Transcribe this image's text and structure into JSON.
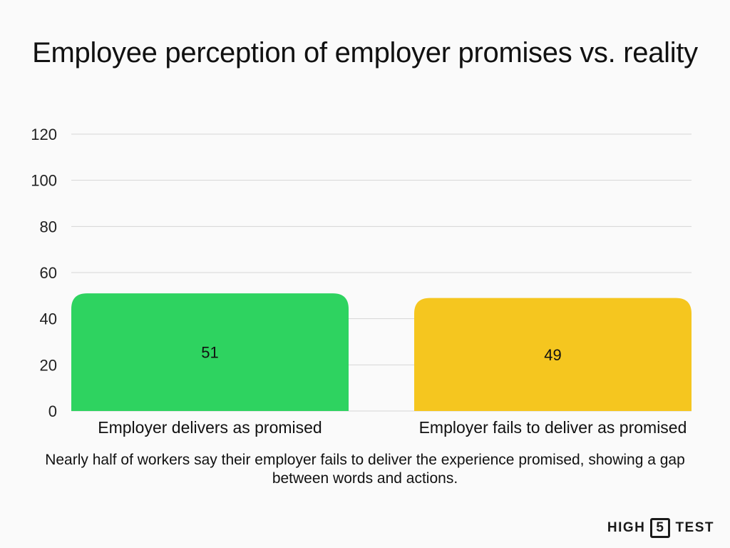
{
  "chart_data": {
    "type": "bar",
    "title": "Employee perception of employer promises vs. reality",
    "categories": [
      "Employer delivers as promised",
      "Employer fails to deliver as promised"
    ],
    "values": [
      51,
      49
    ],
    "data_labels": [
      "51",
      "49"
    ],
    "colors": [
      "#2ed360",
      "#f5c61f"
    ],
    "ylim": [
      0,
      120
    ],
    "yticks": [
      0,
      20,
      40,
      60,
      80,
      100,
      120
    ],
    "ytick_labels": [
      "0",
      "20",
      "40",
      "60",
      "80",
      "100",
      "120"
    ],
    "grid": true,
    "xlabel": "",
    "ylabel": ""
  },
  "caption": "Nearly half of workers say their employer fails to deliver the experience promised, showing a gap between words and actions.",
  "brand": {
    "left": "HIGH",
    "middle": "5",
    "right": "TEST"
  }
}
